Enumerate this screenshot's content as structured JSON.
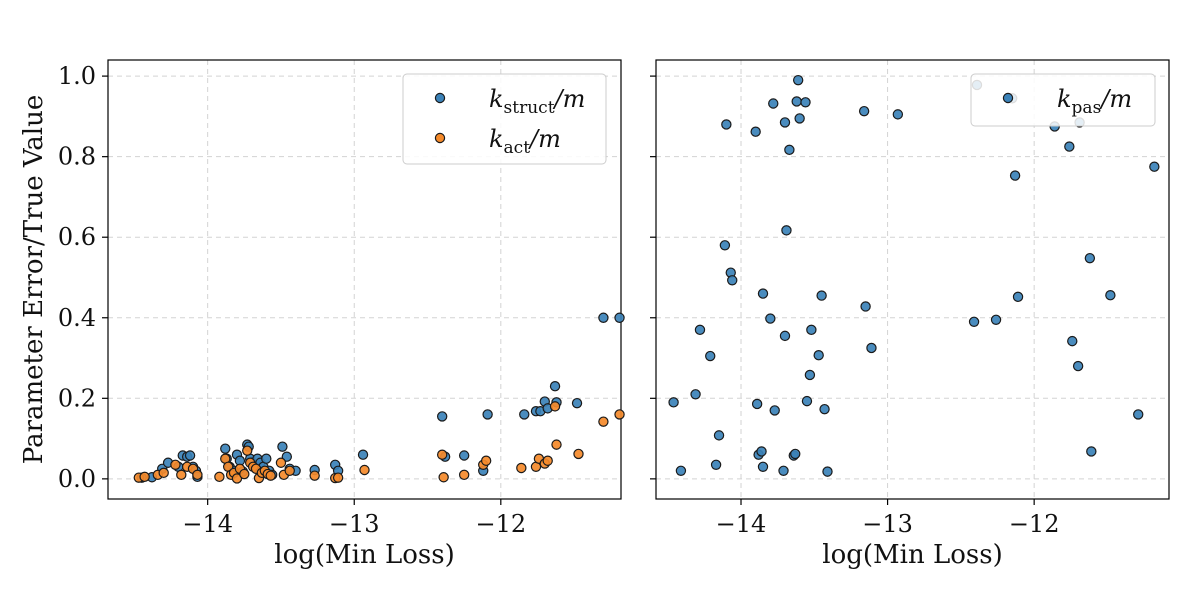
{
  "colors": {
    "blue": "#3b82b8",
    "orange": "#f58a2a",
    "edge": "#1a1a1a",
    "grid": "#d3d3d3",
    "axis": "#000000"
  },
  "chart_data": [
    {
      "type": "scatter",
      "xlabel": "log(Min Loss)",
      "ylabel": "Parameter Error/True Value",
      "xlim": [
        -14.68,
        -11.18
      ],
      "ylim": [
        -0.05,
        1.04
      ],
      "xticks": [
        -14,
        -13,
        -12
      ],
      "xtick_labels": [
        "−14",
        "−13",
        "−12"
      ],
      "yticks": [
        0.0,
        0.2,
        0.4,
        0.6,
        0.8,
        1.0
      ],
      "ytick_labels": [
        "0.0",
        "0.2",
        "0.4",
        "0.6",
        "0.8",
        "1.0"
      ],
      "grid": true,
      "legend_position": "top-right",
      "series": [
        {
          "name": "k_struct/m",
          "legend": {
            "main": "k",
            "sub": "struct",
            "rest": "/m"
          },
          "color": "blue",
          "points": [
            [
              -14.45,
              0.003
            ],
            [
              -14.38,
              0.004
            ],
            [
              -14.31,
              0.025
            ],
            [
              -14.27,
              0.04
            ],
            [
              -14.2,
              0.03
            ],
            [
              -14.17,
              0.058
            ],
            [
              -14.14,
              0.055
            ],
            [
              -14.12,
              0.058
            ],
            [
              -14.1,
              0.03
            ],
            [
              -14.08,
              0.02
            ],
            [
              -14.07,
              0.005
            ],
            [
              -13.88,
              0.075
            ],
            [
              -13.87,
              0.05
            ],
            [
              -13.85,
              0.03
            ],
            [
              -13.82,
              0.02
            ],
            [
              -13.8,
              0.06
            ],
            [
              -13.78,
              0.045
            ],
            [
              -13.76,
              0.018
            ],
            [
              -13.73,
              0.085
            ],
            [
              -13.72,
              0.08
            ],
            [
              -13.71,
              0.05
            ],
            [
              -13.7,
              0.04
            ],
            [
              -13.68,
              0.03
            ],
            [
              -13.66,
              0.05
            ],
            [
              -13.64,
              0.04
            ],
            [
              -13.62,
              0.03
            ],
            [
              -13.6,
              0.05
            ],
            [
              -13.58,
              0.02
            ],
            [
              -13.56,
              0.01
            ],
            [
              -13.49,
              0.08
            ],
            [
              -13.46,
              0.055
            ],
            [
              -13.44,
              0.025
            ],
            [
              -13.4,
              0.02
            ],
            [
              -13.27,
              0.022
            ],
            [
              -13.13,
              0.035
            ],
            [
              -13.11,
              0.02
            ],
            [
              -12.94,
              0.06
            ],
            [
              -12.4,
              0.155
            ],
            [
              -12.38,
              0.055
            ],
            [
              -12.25,
              0.058
            ],
            [
              -12.12,
              0.02
            ],
            [
              -12.09,
              0.16
            ],
            [
              -11.84,
              0.16
            ],
            [
              -11.76,
              0.168
            ],
            [
              -11.73,
              0.168
            ],
            [
              -11.7,
              0.192
            ],
            [
              -11.68,
              0.175
            ],
            [
              -11.63,
              0.23
            ],
            [
              -11.62,
              0.19
            ],
            [
              -11.48,
              0.188
            ],
            [
              -11.3,
              0.4
            ],
            [
              -11.19,
              0.4
            ]
          ]
        },
        {
          "name": "k_act/m",
          "legend": {
            "main": "k",
            "sub": "act",
            "rest": "/m"
          },
          "color": "orange",
          "points": [
            [
              -14.47,
              0.003
            ],
            [
              -14.43,
              0.005
            ],
            [
              -14.34,
              0.01
            ],
            [
              -14.3,
              0.015
            ],
            [
              -14.22,
              0.035
            ],
            [
              -14.18,
              0.01
            ],
            [
              -14.14,
              0.03
            ],
            [
              -14.1,
              0.025
            ],
            [
              -14.07,
              0.01
            ],
            [
              -13.92,
              0.005
            ],
            [
              -13.88,
              0.05
            ],
            [
              -13.86,
              0.03
            ],
            [
              -13.84,
              0.01
            ],
            [
              -13.82,
              0.015
            ],
            [
              -13.8,
              0.001
            ],
            [
              -13.78,
              0.025
            ],
            [
              -13.75,
              0.012
            ],
            [
              -13.73,
              0.07
            ],
            [
              -13.71,
              0.04
            ],
            [
              -13.69,
              0.03
            ],
            [
              -13.67,
              0.025
            ],
            [
              -13.65,
              0.002
            ],
            [
              -13.63,
              0.015
            ],
            [
              -13.61,
              0.02
            ],
            [
              -13.59,
              0.012
            ],
            [
              -13.57,
              0.008
            ],
            [
              -13.5,
              0.04
            ],
            [
              -13.48,
              0.01
            ],
            [
              -13.44,
              0.02
            ],
            [
              -13.27,
              0.008
            ],
            [
              -13.13,
              0.002
            ],
            [
              -13.11,
              0.003
            ],
            [
              -12.93,
              0.022
            ],
            [
              -12.4,
              0.06
            ],
            [
              -12.39,
              0.004
            ],
            [
              -12.25,
              0.01
            ],
            [
              -12.12,
              0.035
            ],
            [
              -12.1,
              0.045
            ],
            [
              -11.86,
              0.027
            ],
            [
              -11.76,
              0.03
            ],
            [
              -11.74,
              0.05
            ],
            [
              -11.7,
              0.038
            ],
            [
              -11.68,
              0.045
            ],
            [
              -11.63,
              0.18
            ],
            [
              -11.62,
              0.085
            ],
            [
              -11.47,
              0.062
            ],
            [
              -11.3,
              0.142
            ],
            [
              -11.19,
              0.16
            ]
          ]
        }
      ]
    },
    {
      "type": "scatter",
      "xlabel": "log(Min Loss)",
      "ylabel": "",
      "xlim": [
        -14.58,
        -11.08
      ],
      "ylim": [
        -0.05,
        1.04
      ],
      "xticks": [
        -14,
        -13,
        -12
      ],
      "xtick_labels": [
        "−14",
        "−13",
        "−12"
      ],
      "yticks": [
        0.0,
        0.2,
        0.4,
        0.6,
        0.8,
        1.0
      ],
      "ytick_labels": [],
      "grid": true,
      "legend_position": "top-right",
      "series": [
        {
          "name": "k_pas/m",
          "legend": {
            "main": "k",
            "sub": "pas",
            "rest": "/m"
          },
          "color": "blue",
          "points": [
            [
              -14.46,
              0.19
            ],
            [
              -14.41,
              0.02
            ],
            [
              -14.31,
              0.21
            ],
            [
              -14.28,
              0.37
            ],
            [
              -14.21,
              0.305
            ],
            [
              -14.17,
              0.035
            ],
            [
              -14.15,
              0.108
            ],
            [
              -14.11,
              0.58
            ],
            [
              -14.1,
              0.88
            ],
            [
              -14.07,
              0.512
            ],
            [
              -14.06,
              0.493
            ],
            [
              -13.9,
              0.862
            ],
            [
              -13.89,
              0.186
            ],
            [
              -13.88,
              0.06
            ],
            [
              -13.86,
              0.068
            ],
            [
              -13.85,
              0.46
            ],
            [
              -13.85,
              0.03
            ],
            [
              -13.8,
              0.398
            ],
            [
              -13.78,
              0.932
            ],
            [
              -13.77,
              0.17
            ],
            [
              -13.71,
              0.02
            ],
            [
              -13.7,
              0.355
            ],
            [
              -13.7,
              0.885
            ],
            [
              -13.69,
              0.617
            ],
            [
              -13.67,
              0.817
            ],
            [
              -13.64,
              0.058
            ],
            [
              -13.63,
              0.062
            ],
            [
              -13.62,
              0.937
            ],
            [
              -13.61,
              0.99
            ],
            [
              -13.6,
              0.895
            ],
            [
              -13.56,
              0.935
            ],
            [
              -13.55,
              0.193
            ],
            [
              -13.53,
              0.258
            ],
            [
              -13.52,
              0.37
            ],
            [
              -13.47,
              0.307
            ],
            [
              -13.45,
              0.455
            ],
            [
              -13.43,
              0.173
            ],
            [
              -13.41,
              0.018
            ],
            [
              -13.16,
              0.913
            ],
            [
              -13.15,
              0.428
            ],
            [
              -13.11,
              0.325
            ],
            [
              -12.93,
              0.905
            ],
            [
              -12.41,
              0.39
            ],
            [
              -12.39,
              0.978
            ],
            [
              -12.26,
              0.395
            ],
            [
              -12.15,
              0.945
            ],
            [
              -12.13,
              0.753
            ],
            [
              -12.11,
              0.452
            ],
            [
              -11.86,
              0.875
            ],
            [
              -11.76,
              0.825
            ],
            [
              -11.74,
              0.342
            ],
            [
              -11.7,
              0.28
            ],
            [
              -11.69,
              0.885
            ],
            [
              -11.62,
              0.548
            ],
            [
              -11.61,
              0.068
            ],
            [
              -11.48,
              0.456
            ],
            [
              -11.29,
              0.16
            ],
            [
              -11.18,
              0.775
            ]
          ]
        }
      ]
    }
  ]
}
